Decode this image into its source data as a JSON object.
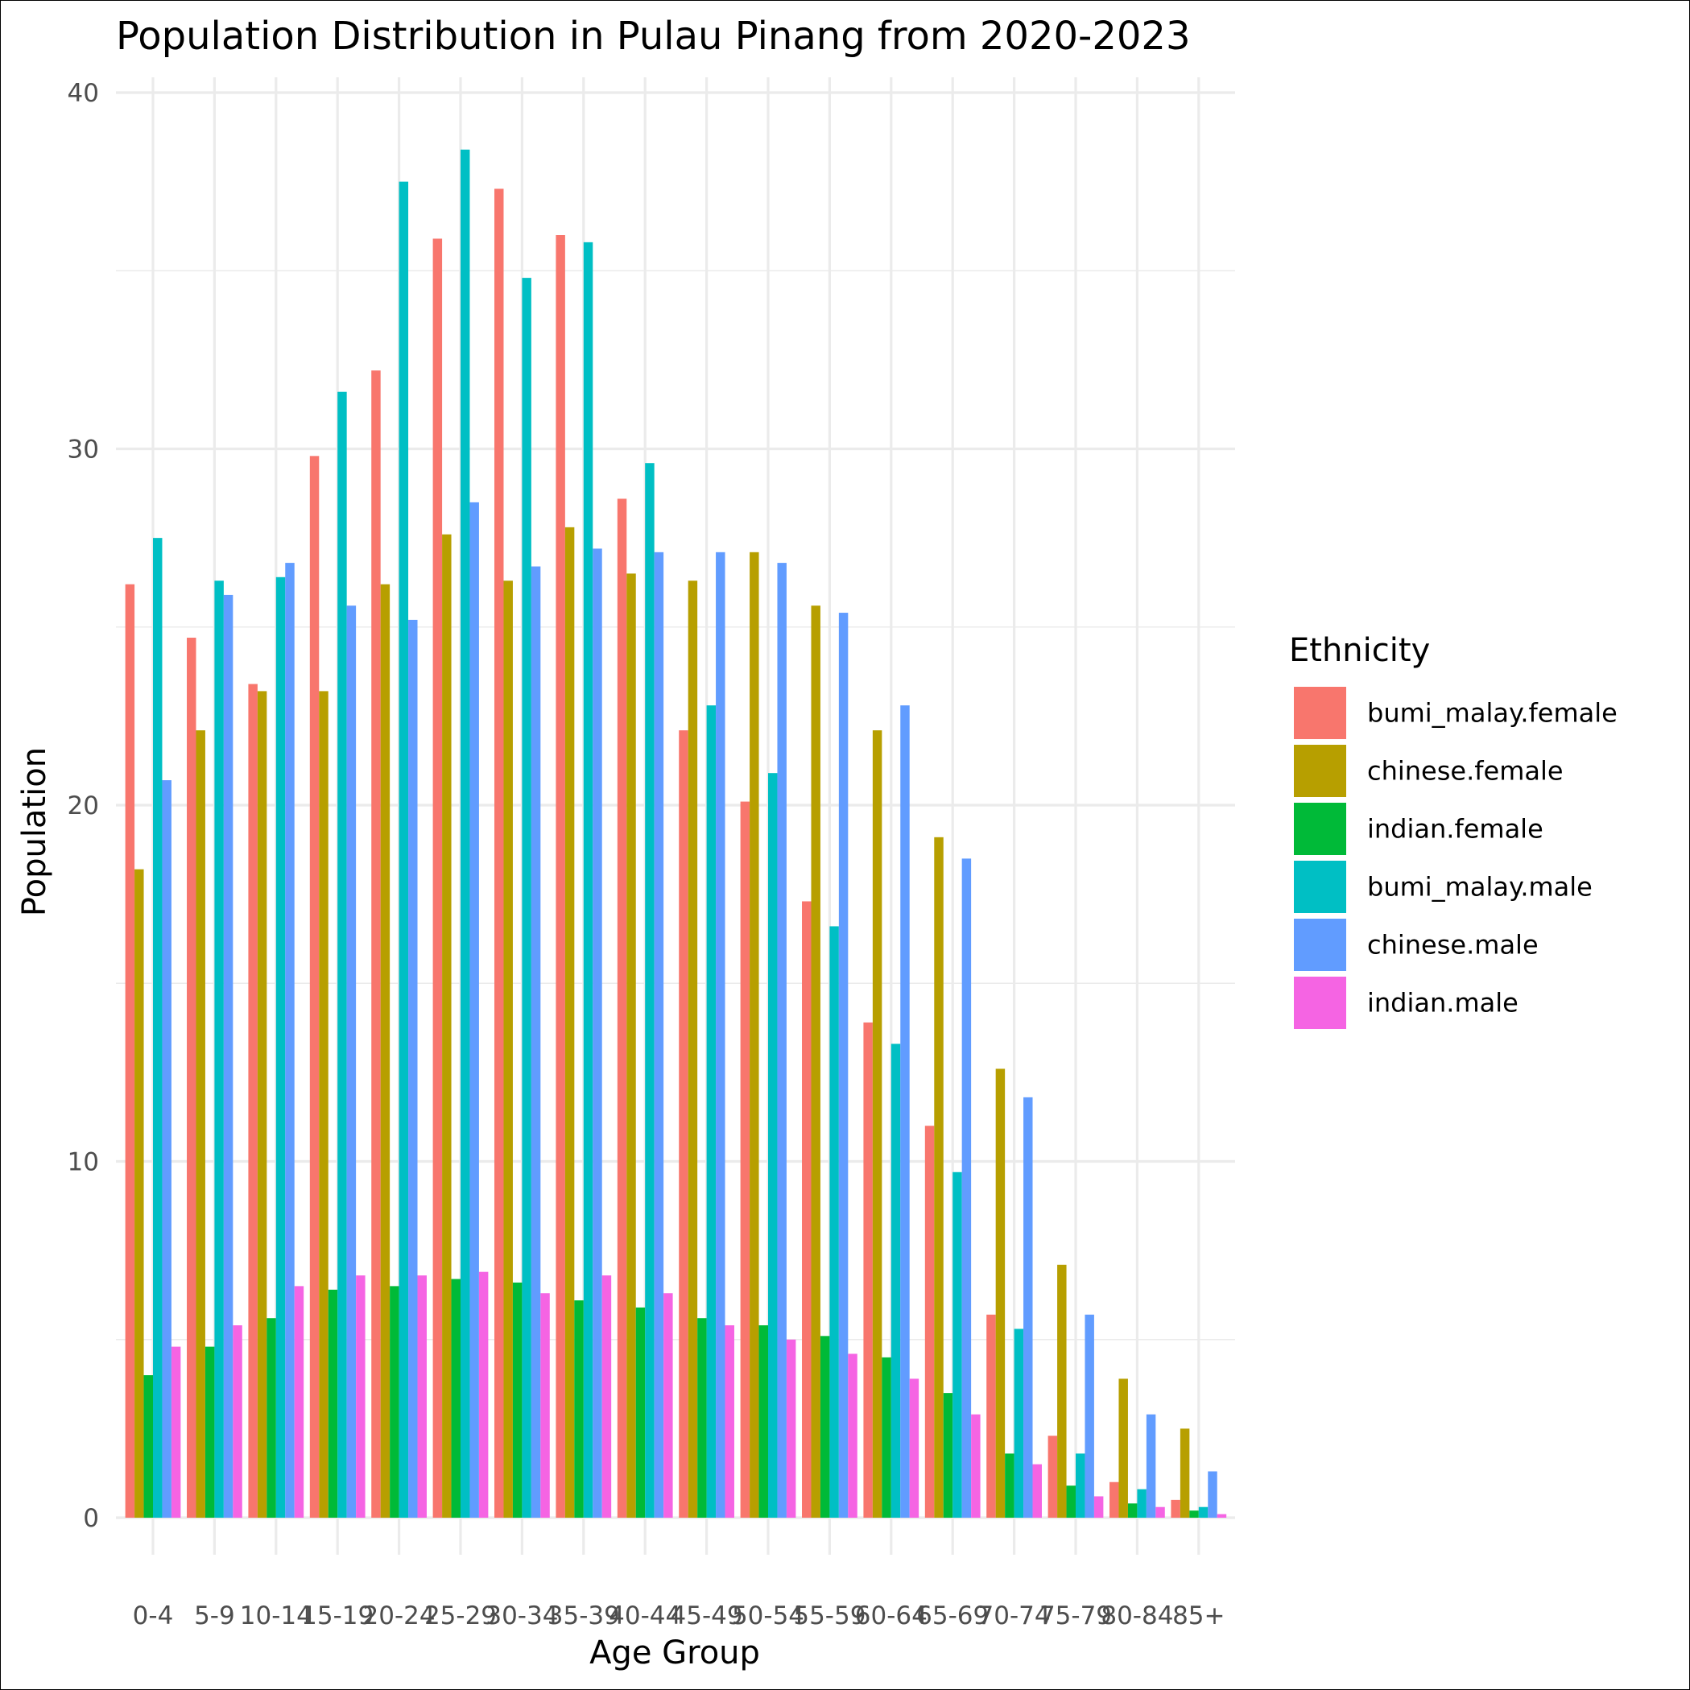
{
  "chart_data": {
    "type": "bar",
    "title": "Population Distribution in Pulau Pinang from 2020-2023",
    "xlabel": "Age Group",
    "ylabel": "Population",
    "ylim": [
      0,
      40
    ],
    "yticks": [
      "0",
      "10",
      "20",
      "30",
      "40"
    ],
    "grid": true,
    "legend": {
      "title": "Ethnicity",
      "position": "right"
    },
    "categories": [
      "0-4",
      "5-9",
      "10-14",
      "15-19",
      "20-24",
      "25-29",
      "30-34",
      "35-39",
      "40-44",
      "45-49",
      "50-54",
      "55-59",
      "60-64",
      "65-69",
      "70-74",
      "75-79",
      "80-84",
      "85+"
    ],
    "series": [
      {
        "name": "bumi_malay.female",
        "color": "#F8766D",
        "values": [
          26.2,
          24.7,
          23.4,
          29.8,
          32.2,
          35.9,
          37.3,
          36.0,
          28.6,
          22.1,
          20.1,
          17.3,
          13.9,
          11.0,
          5.7,
          2.3,
          1.0,
          0.5
        ]
      },
      {
        "name": "chinese.female",
        "color": "#B79F00",
        "values": [
          18.2,
          22.1,
          23.2,
          23.2,
          26.2,
          27.6,
          26.3,
          27.8,
          26.5,
          26.3,
          27.1,
          25.6,
          22.1,
          19.1,
          12.6,
          7.1,
          3.9,
          2.5
        ]
      },
      {
        "name": "indian.female",
        "color": "#00BA38",
        "values": [
          4.0,
          4.8,
          5.6,
          6.4,
          6.5,
          6.7,
          6.6,
          6.1,
          5.9,
          5.6,
          5.4,
          5.1,
          4.5,
          3.5,
          1.8,
          0.9,
          0.4,
          0.2
        ]
      },
      {
        "name": "bumi_malay.male",
        "color": "#00BFC4",
        "values": [
          27.5,
          26.3,
          26.4,
          31.6,
          37.5,
          38.4,
          34.8,
          35.8,
          29.6,
          22.8,
          20.9,
          16.6,
          13.3,
          9.7,
          5.3,
          1.8,
          0.8,
          0.3
        ]
      },
      {
        "name": "chinese.male",
        "color": "#619CFF",
        "values": [
          20.7,
          25.9,
          26.8,
          25.6,
          25.2,
          28.5,
          26.7,
          27.2,
          27.1,
          27.1,
          26.8,
          25.4,
          22.8,
          18.5,
          11.8,
          5.7,
          2.9,
          1.3
        ]
      },
      {
        "name": "indian.male",
        "color": "#F564E3",
        "values": [
          4.8,
          5.4,
          6.5,
          6.8,
          6.8,
          6.9,
          6.3,
          6.8,
          6.3,
          5.4,
          5.0,
          4.6,
          3.9,
          2.9,
          1.5,
          0.6,
          0.3,
          0.1
        ]
      }
    ]
  }
}
